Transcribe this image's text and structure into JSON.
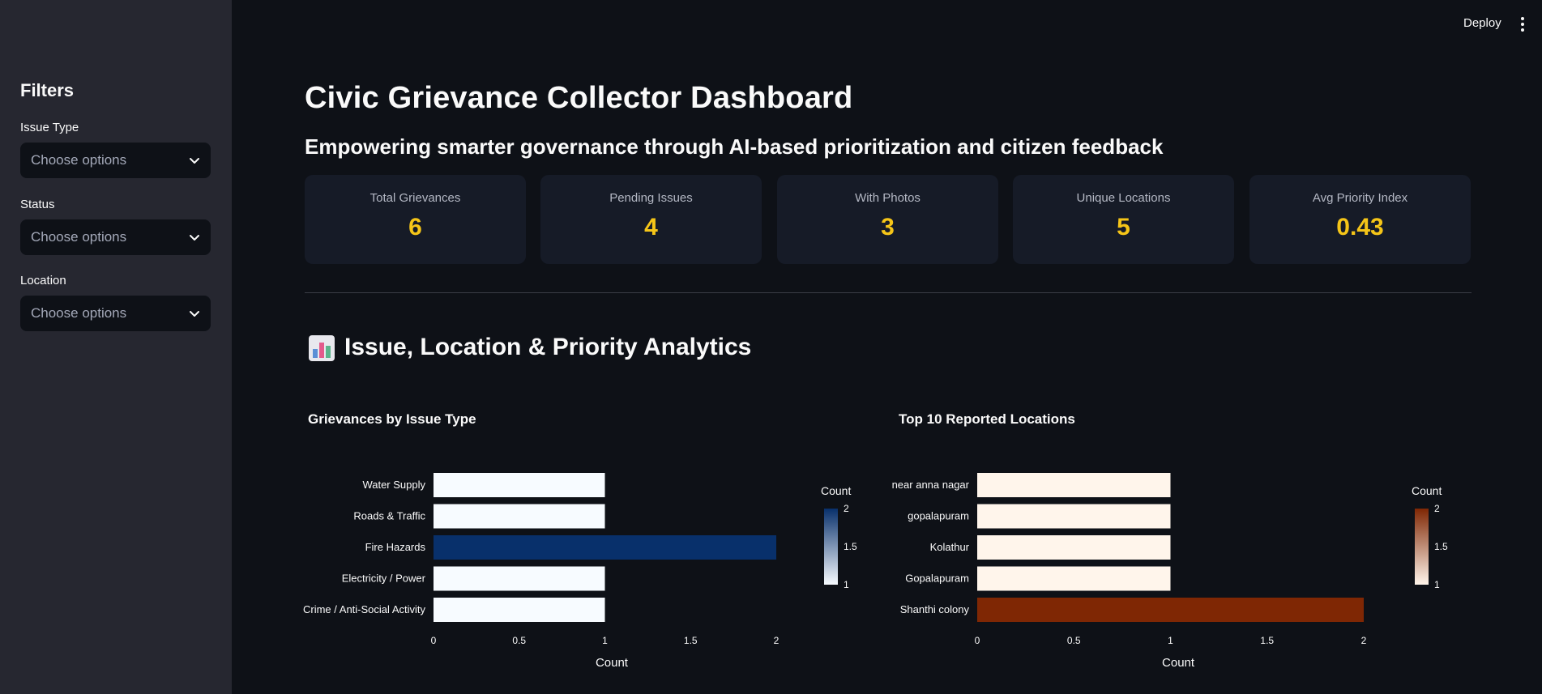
{
  "topbar": {
    "deploy_label": "Deploy",
    "menu_icon": "kebab-menu-icon"
  },
  "sidebar": {
    "title": "Filters",
    "filters": [
      {
        "label": "Issue Type",
        "placeholder": "Choose options"
      },
      {
        "label": "Status",
        "placeholder": "Choose options"
      },
      {
        "label": "Location",
        "placeholder": "Choose options"
      }
    ]
  },
  "main": {
    "title": "Civic Grievance Collector Dashboard",
    "subtitle": "Empowering smarter governance through AI-based prioritization and citizen feedback",
    "metrics": [
      {
        "label": "Total Grievances",
        "value": "6"
      },
      {
        "label": "Pending Issues",
        "value": "4"
      },
      {
        "label": "With Photos",
        "value": "3"
      },
      {
        "label": "Unique Locations",
        "value": "5"
      },
      {
        "label": "Avg Priority Index",
        "value": "0.43"
      }
    ],
    "section_title": "Issue, Location & Priority Analytics",
    "section_icon": "bar-chart-icon"
  },
  "colors": {
    "background": "#0e1117",
    "sidebar": "#262730",
    "metric_value": "#f5c518",
    "blue_low": "#f7fbff",
    "blue_high": "#08306b",
    "orange_low": "#fff5eb",
    "orange_high": "#7f2704"
  },
  "chart_data": [
    {
      "type": "bar",
      "orientation": "horizontal",
      "title": "Grievances by Issue Type",
      "categories": [
        "Water Supply",
        "Roads & Traffic",
        "Fire Hazards",
        "Electricity / Power",
        "Crime / Anti-Social Activity"
      ],
      "values": [
        1,
        1,
        2,
        1,
        1
      ],
      "xlabel": "Count",
      "ylabel": "",
      "xlim": [
        0,
        2
      ],
      "xticks": [
        "0",
        "0.5",
        "1",
        "1.5",
        "2"
      ],
      "colorscale": "Blues",
      "colorbar": {
        "title": "Count",
        "ticks": [
          "2",
          "1.5",
          "1"
        ],
        "range": [
          1,
          2
        ]
      }
    },
    {
      "type": "bar",
      "orientation": "horizontal",
      "title": "Top 10 Reported Locations",
      "categories": [
        "near anna nagar",
        "gopalapuram",
        "Kolathur",
        "Gopalapuram",
        "Shanthi colony"
      ],
      "values": [
        1,
        1,
        1,
        1,
        2
      ],
      "xlabel": "Count",
      "ylabel": "",
      "xlim": [
        0,
        2
      ],
      "xticks": [
        "0",
        "0.5",
        "1",
        "1.5",
        "2"
      ],
      "colorscale": "Oranges",
      "colorbar": {
        "title": "Count",
        "ticks": [
          "2",
          "1.5",
          "1"
        ],
        "range": [
          1,
          2
        ]
      }
    }
  ]
}
